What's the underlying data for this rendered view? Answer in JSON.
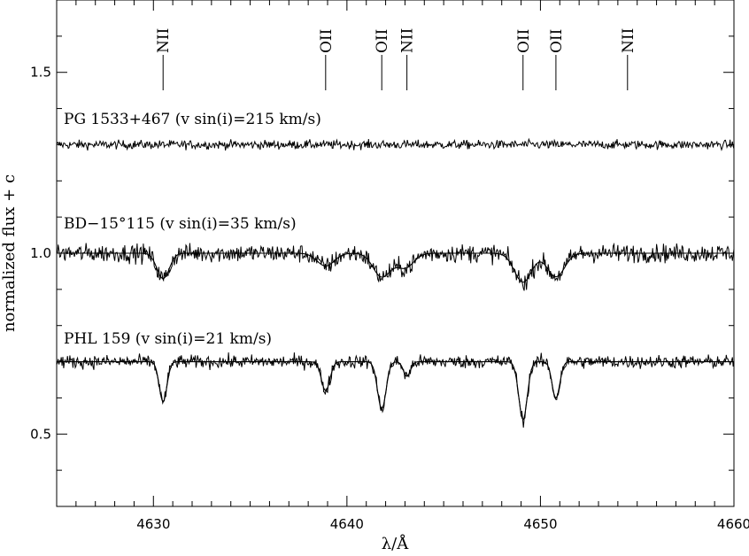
{
  "chart_data": {
    "type": "line",
    "xlabel": "λ/Å",
    "ylabel": "normalized flux + c",
    "xlim": [
      4625,
      4660
    ],
    "ylim": [
      0.3,
      1.7
    ],
    "x_ticks": [
      4630,
      4640,
      4650,
      4660
    ],
    "x_tick_labels": [
      "4630",
      "4640",
      "4650",
      "4660"
    ],
    "y_ticks": [
      0.5,
      1.0,
      1.5
    ],
    "y_tick_labels": [
      "0.5",
      "1.0",
      "1.5"
    ],
    "x_minor_step": 1,
    "y_minor_step": 0.1,
    "grid": false,
    "line_ids": [
      {
        "label": "NII",
        "wavelength": 4630.5
      },
      {
        "label": "OII",
        "wavelength": 4638.9
      },
      {
        "label": "OII",
        "wavelength": 4641.8
      },
      {
        "label": "NII",
        "wavelength": 4643.1
      },
      {
        "label": "OII",
        "wavelength": 4649.1
      },
      {
        "label": "OII",
        "wavelength": 4650.8
      },
      {
        "label": "NII",
        "wavelength": 4654.5
      }
    ],
    "series": [
      {
        "name": "PG 1533+467 (v sin(i)=215 km/s)",
        "continuum": 1.3,
        "noise": 0.012,
        "has_model": false,
        "lines": []
      },
      {
        "name": "BD−15°115 (v sin(i)=35 km/s)",
        "continuum": 1.0,
        "noise": 0.025,
        "has_model": true,
        "lines": [
          {
            "center": 4630.5,
            "depth": 0.07,
            "sigma": 0.32
          },
          {
            "center": 4638.9,
            "depth": 0.035,
            "sigma": 0.45
          },
          {
            "center": 4641.8,
            "depth": 0.065,
            "sigma": 0.45
          },
          {
            "center": 4643.0,
            "depth": 0.04,
            "sigma": 0.45
          },
          {
            "center": 4649.1,
            "depth": 0.08,
            "sigma": 0.45
          },
          {
            "center": 4650.8,
            "depth": 0.065,
            "sigma": 0.45
          }
        ]
      },
      {
        "name": "PHL 159 (v sin(i)=21 km/s)",
        "continuum": 0.7,
        "noise": 0.018,
        "has_model": true,
        "lines": [
          {
            "center": 4630.5,
            "depth": 0.11,
            "sigma": 0.2
          },
          {
            "center": 4638.9,
            "depth": 0.08,
            "sigma": 0.22
          },
          {
            "center": 4641.8,
            "depth": 0.13,
            "sigma": 0.22
          },
          {
            "center": 4643.1,
            "depth": 0.04,
            "sigma": 0.18
          },
          {
            "center": 4649.1,
            "depth": 0.16,
            "sigma": 0.22
          },
          {
            "center": 4650.8,
            "depth": 0.1,
            "sigma": 0.2
          }
        ]
      }
    ]
  }
}
